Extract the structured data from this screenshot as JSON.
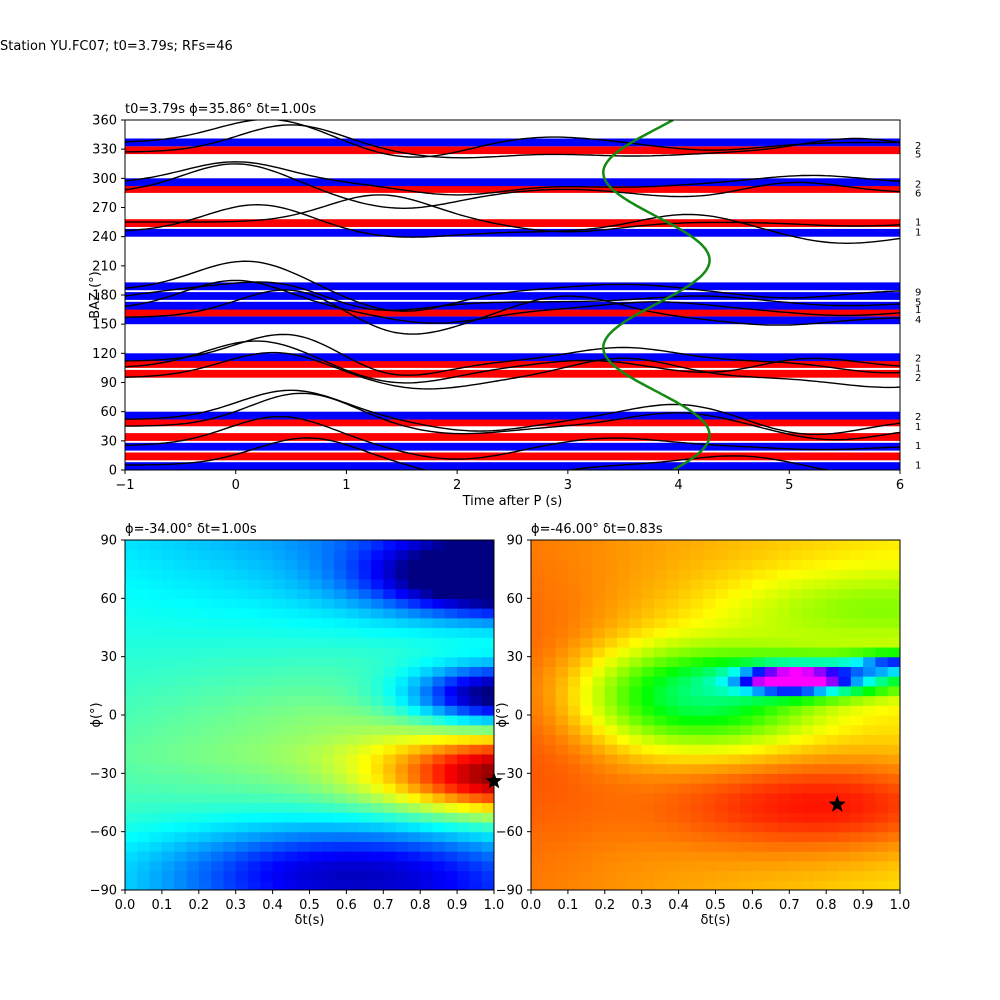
{
  "suptitle": "Station YU.FC07; t0=3.79s; RFs=46",
  "chart_data": [
    {
      "type": "line",
      "panel": "top",
      "title": "t0=3.79s ϕ=35.86° δt=1.00s",
      "xlabel": "Time after P (s)",
      "ylabel": "BAZ (°)",
      "xlim": [
        -1,
        6
      ],
      "ylim": [
        0,
        360
      ],
      "xticks": [
        "−1",
        "0",
        "1",
        "2",
        "3",
        "4",
        "5",
        "6"
      ],
      "yticks": [
        "0",
        "30",
        "60",
        "90",
        "120",
        "150",
        "180",
        "210",
        "240",
        "270",
        "300",
        "330",
        "360"
      ],
      "traces": [
        {
          "baz": 5,
          "peaks": [
            [
              0.65,
              28
            ],
            [
              4.55,
              10
            ]
          ],
          "troughs": [
            [
              2.3,
              -16
            ],
            [
              5.7,
              -10
            ]
          ]
        },
        {
          "baz": 25,
          "peaks": [
            [
              0.4,
              30
            ],
            [
              3.4,
              8
            ]
          ],
          "troughs": [
            [
              2.0,
              -14
            ],
            [
              5.3,
              -4
            ]
          ]
        },
        {
          "baz": 45,
          "peaks": [
            [
              0.6,
              34
            ],
            [
              4.0,
              14
            ]
          ],
          "troughs": [
            [
              2.0,
              -8
            ],
            [
              5.4,
              -14
            ]
          ]
        },
        {
          "baz": 52,
          "peaks": [
            [
              0.5,
              30
            ],
            [
              4.0,
              16
            ]
          ],
          "troughs": [
            [
              2.2,
              -12
            ],
            [
              5.2,
              -16
            ]
          ]
        },
        {
          "baz": 95,
          "peaks": [
            [
              0.35,
              26
            ],
            [
              3.5,
              20
            ]
          ],
          "troughs": [
            [
              1.7,
              -12
            ],
            [
              5.9,
              -10
            ]
          ]
        },
        {
          "baz": 105,
          "peaks": [
            [
              0.2,
              28
            ],
            [
              3.2,
              8
            ],
            [
              5.1,
              12
            ]
          ],
          "troughs": [
            [
              1.5,
              -16
            ],
            [
              4.4,
              -8
            ]
          ]
        },
        {
          "baz": 112,
          "peaks": [
            [
              0.5,
              30
            ],
            [
              3.5,
              14
            ]
          ],
          "troughs": [
            [
              1.4,
              -18
            ],
            [
              5.9,
              -12
            ]
          ]
        },
        {
          "baz": 157,
          "peaks": [
            [
              0.5,
              30
            ],
            [
              3.0,
              22
            ]
          ],
          "troughs": [
            [
              1.5,
              -20
            ],
            [
              4.9,
              -8
            ]
          ]
        },
        {
          "baz": 165,
          "peaks": [
            [
              0.0,
              30
            ],
            [
              3.8,
              8
            ]
          ],
          "troughs": [
            [
              1.8,
              -14
            ],
            [
              5.5,
              -6
            ]
          ]
        },
        {
          "baz": 173,
          "peaks": [
            [
              -0.5,
              10
            ],
            [
              0.4,
              20
            ],
            [
              4.2,
              6
            ]
          ],
          "troughs": [
            [
              1.2,
              -12
            ],
            [
              5.5,
              -4
            ]
          ]
        },
        {
          "baz": 185,
          "peaks": [
            [
              0.1,
              30
            ],
            [
              3.5,
              6
            ]
          ],
          "troughs": [
            [
              1.5,
              -22
            ],
            [
              5.0,
              -8
            ]
          ]
        },
        {
          "baz": 245,
          "peaks": [
            [
              0.2,
              28
            ],
            [
              4.1,
              18
            ]
          ],
          "troughs": [
            [
              1.5,
              -6
            ],
            [
              5.5,
              -12
            ]
          ]
        },
        {
          "baz": 255,
          "peaks": [
            [
              1.3,
              28
            ]
          ],
          "troughs": [
            [
              3.0,
              -10
            ],
            [
              5.6,
              -4
            ]
          ]
        },
        {
          "baz": 285,
          "peaks": [
            [
              0.0,
              30
            ],
            [
              3.0,
              4
            ],
            [
              5.0,
              12
            ]
          ],
          "troughs": [
            [
              1.5,
              -16
            ],
            [
              4.2,
              -6
            ]
          ]
        },
        {
          "baz": 295,
          "peaks": [
            [
              0.0,
              22
            ],
            [
              5.2,
              8
            ]
          ],
          "troughs": [
            [
              2.0,
              -12
            ],
            [
              3.5,
              -4
            ]
          ]
        },
        {
          "baz": 327,
          "peaks": [
            [
              0.5,
              28
            ],
            [
              5.6,
              14
            ]
          ],
          "troughs": [
            [
              2.0,
              -6
            ],
            [
              3.6,
              -4
            ]
          ]
        },
        {
          "baz": 337,
          "peaks": [
            [
              0.3,
              24
            ],
            [
              2.8,
              6
            ]
          ],
          "troughs": [
            [
              1.6,
              -16
            ],
            [
              4.3,
              -8
            ]
          ]
        }
      ],
      "bands": [
        {
          "y": 0,
          "color": "blue"
        },
        {
          "y": 10,
          "color": "red"
        },
        {
          "y": 20,
          "color": "blue"
        },
        {
          "y": 30,
          "color": "red"
        },
        {
          "y": 45,
          "color": "red"
        },
        {
          "y": 52,
          "color": "blue"
        },
        {
          "y": 95,
          "color": "red"
        },
        {
          "y": 105,
          "color": "red"
        },
        {
          "y": 112,
          "color": "blue"
        },
        {
          "y": 150,
          "color": "blue"
        },
        {
          "y": 158,
          "color": "red"
        },
        {
          "y": 165,
          "color": "blue"
        },
        {
          "y": 175,
          "color": "blue"
        },
        {
          "y": 185,
          "color": "blue"
        },
        {
          "y": 240,
          "color": "blue"
        },
        {
          "y": 250,
          "color": "red"
        },
        {
          "y": 285,
          "color": "red"
        },
        {
          "y": 292,
          "color": "blue"
        },
        {
          "y": 325,
          "color": "red"
        },
        {
          "y": 333,
          "color": "blue"
        }
      ],
      "green_curve": {
        "center": 3.8,
        "amplitude": 0.48,
        "period_deg": 180,
        "phase_deg": 35.86,
        "color": "#138a13"
      },
      "counts": [
        {
          "baz": 5,
          "label": "1"
        },
        {
          "baz": 25,
          "label": "1"
        },
        {
          "baz": 45,
          "label": "1"
        },
        {
          "baz": 55,
          "label": "2"
        },
        {
          "baz": 95,
          "label": "2"
        },
        {
          "baz": 105,
          "label": "1"
        },
        {
          "baz": 115,
          "label": "2"
        },
        {
          "baz": 155,
          "label": "4"
        },
        {
          "baz": 165,
          "label": "1"
        },
        {
          "baz": 173,
          "label": "5"
        },
        {
          "baz": 183,
          "label": "9"
        },
        {
          "baz": 245,
          "label": "1"
        },
        {
          "baz": 255,
          "label": "1"
        },
        {
          "baz": 285,
          "label": "6"
        },
        {
          "baz": 294,
          "label": "2"
        },
        {
          "baz": 325,
          "label": "5"
        },
        {
          "baz": 334,
          "label": "2"
        }
      ]
    },
    {
      "type": "heatmap",
      "panel": "bottom-left",
      "title": "ϕ=-34.00° δt=1.00s",
      "xlabel": "δt(s)",
      "ylabel": "ϕ(°)",
      "xlim": [
        0,
        1
      ],
      "ylim": [
        -90,
        90
      ],
      "xticks": [
        "0.0",
        "0.1",
        "0.2",
        "0.3",
        "0.4",
        "0.5",
        "0.6",
        "0.7",
        "0.8",
        "0.9",
        "1.0"
      ],
      "yticks": [
        "−90",
        "−60",
        "−30",
        "0",
        "30",
        "60",
        "90"
      ],
      "colormap": "jet",
      "best": {
        "dt": 1.0,
        "phi": -34.0
      }
    },
    {
      "type": "heatmap",
      "panel": "bottom-right",
      "title": "ϕ=-46.00° δt=0.83s",
      "xlabel": "δt(s)",
      "ylabel": "ϕ(°)",
      "xlim": [
        0,
        1
      ],
      "ylim": [
        -90,
        90
      ],
      "xticks": [
        "0.0",
        "0.1",
        "0.2",
        "0.3",
        "0.4",
        "0.5",
        "0.6",
        "0.7",
        "0.8",
        "0.9",
        "1.0"
      ],
      "yticks": [
        "−90",
        "−60",
        "−30",
        "0",
        "30",
        "60",
        "90"
      ],
      "colormap": "hsv",
      "best": {
        "dt": 0.83,
        "phi": -46.0
      }
    }
  ]
}
